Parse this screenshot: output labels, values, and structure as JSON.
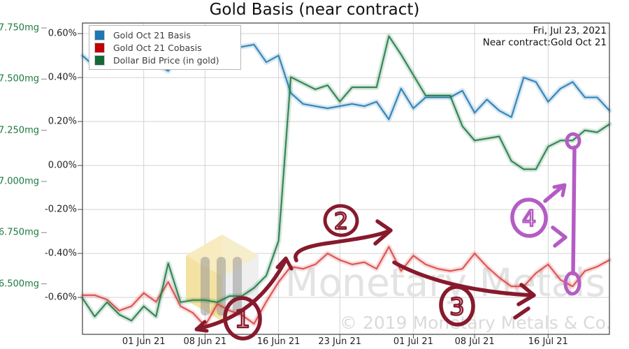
{
  "title": "Gold Basis (near contract)",
  "header": {
    "date": "Fri, Jul 23, 2021",
    "contract": "Near contract:Gold Oct 21"
  },
  "legend": {
    "items": [
      {
        "label": "Gold Oct 21 Basis",
        "swatch": "#1f77b4"
      },
      {
        "label": "Gold Oct 21 Cobasis",
        "swatch": "#c00000"
      },
      {
        "label": "Dollar Bid Price (in gold)",
        "swatch": "#156938"
      }
    ]
  },
  "watermark": {
    "logo": "monetary-metals-hexagon-logo",
    "text": "Monetary Metals",
    "copyright": "© 2019 Monetary Metals & Co."
  },
  "annotations": {
    "maroon_color": "#871a2d",
    "purple_color": "#b45cc4",
    "steps": [
      {
        "label": "1"
      },
      {
        "label": "2"
      },
      {
        "label": "3"
      },
      {
        "label": "4"
      }
    ]
  },
  "chart_data": {
    "type": "line",
    "title": "Gold Basis (near contract)",
    "grid": true,
    "legend_position": "upper-left",
    "x_dates": [
      "May 25",
      "May 26",
      "May 27",
      "May 28",
      "May 31",
      "Jun 1",
      "Jun 2",
      "Jun 3",
      "Jun 4",
      "Jun 7",
      "Jun 8",
      "Jun 9",
      "Jun 10",
      "Jun 11",
      "Jun 14",
      "Jun 15",
      "Jun 16",
      "Jun 17",
      "Jun 18",
      "Jun 21",
      "Jun 22",
      "Jun 23",
      "Jun 24",
      "Jun 25",
      "Jun 28",
      "Jun 29",
      "Jun 30",
      "Jul 1",
      "Jul 2",
      "Jul 5",
      "Jul 6",
      "Jul 7",
      "Jul 8",
      "Jul 9",
      "Jul 12",
      "Jul 13",
      "Jul 14",
      "Jul 15",
      "Jul 16",
      "Jul 19",
      "Jul 20",
      "Jul 21",
      "Jul 22",
      "Jul 23"
    ],
    "x_tick_labels": [
      "01 Jun 21",
      "08 Jun 21",
      "16 Jun 21",
      "23 Jun 21",
      "01 Jul 21",
      "08 Jul 21",
      "16 Jul 21"
    ],
    "x_tick_indices": [
      5,
      10,
      16,
      21,
      27,
      32,
      38
    ],
    "percent_axis": {
      "tick_labels": [
        "0.60%",
        "0.40%",
        "0.20%",
        "0.00%",
        "-0.20%",
        "-0.40%",
        "-0.60%"
      ],
      "tick_values": [
        0.6,
        0.4,
        0.2,
        0.0,
        -0.2,
        -0.4,
        -0.6
      ],
      "range": [
        -0.768,
        0.648
      ]
    },
    "mg_axis": {
      "unit": "mg",
      "tick_labels": [
        "17.750mg",
        "17.500mg",
        "17.250mg",
        "17.000mg",
        "16.750mg",
        "16.500mg"
      ],
      "tick_values": [
        17.75,
        17.5,
        17.25,
        17.0,
        16.75,
        16.5
      ],
      "range": [
        16.253,
        17.774
      ],
      "label_color": "#1b7a3f"
    },
    "series": [
      {
        "name": "Gold Oct 21 Basis",
        "axis": "percent",
        "color": "#2079b4",
        "values": [
          0.5,
          0.45,
          0.47,
          0.48,
          0.49,
          0.48,
          0.46,
          0.43,
          0.51,
          0.52,
          0.53,
          0.54,
          0.53,
          0.54,
          0.55,
          0.47,
          0.5,
          0.33,
          0.28,
          0.27,
          0.26,
          0.27,
          0.28,
          0.27,
          0.29,
          0.21,
          0.35,
          0.26,
          0.31,
          0.31,
          0.31,
          0.34,
          0.24,
          0.3,
          0.25,
          0.22,
          0.4,
          0.38,
          0.29,
          0.35,
          0.38,
          0.31,
          0.31,
          0.25
        ]
      },
      {
        "name": "Gold Oct 21 Cobasis",
        "axis": "percent",
        "color": "#d94545",
        "values": [
          -0.59,
          -0.59,
          -0.61,
          -0.66,
          -0.64,
          -0.58,
          -0.62,
          -0.53,
          -0.64,
          -0.67,
          -0.73,
          -0.63,
          -0.66,
          -0.68,
          -0.72,
          -0.62,
          -0.53,
          -0.46,
          -0.47,
          -0.45,
          -0.4,
          -0.43,
          -0.45,
          -0.44,
          -0.47,
          -0.37,
          -0.48,
          -0.41,
          -0.45,
          -0.47,
          -0.48,
          -0.47,
          -0.4,
          -0.46,
          -0.51,
          -0.55,
          -0.55,
          -0.49,
          -0.45,
          -0.52,
          -0.55,
          -0.48,
          -0.46,
          -0.43
        ]
      },
      {
        "name": "Dollar Bid Price (in gold)",
        "axis": "mg",
        "color": "#1f7a44",
        "values": [
          16.43,
          16.34,
          16.41,
          16.35,
          16.32,
          16.39,
          16.34,
          16.6,
          16.41,
          16.42,
          16.42,
          16.41,
          16.44,
          16.44,
          16.48,
          16.54,
          16.71,
          17.51,
          17.48,
          17.45,
          17.47,
          17.39,
          17.46,
          17.46,
          17.46,
          17.71,
          17.62,
          17.52,
          17.42,
          17.42,
          17.42,
          17.27,
          17.2,
          17.21,
          17.22,
          17.1,
          17.06,
          17.06,
          17.17,
          17.2,
          17.2,
          17.25,
          17.24,
          17.28
        ]
      }
    ]
  }
}
